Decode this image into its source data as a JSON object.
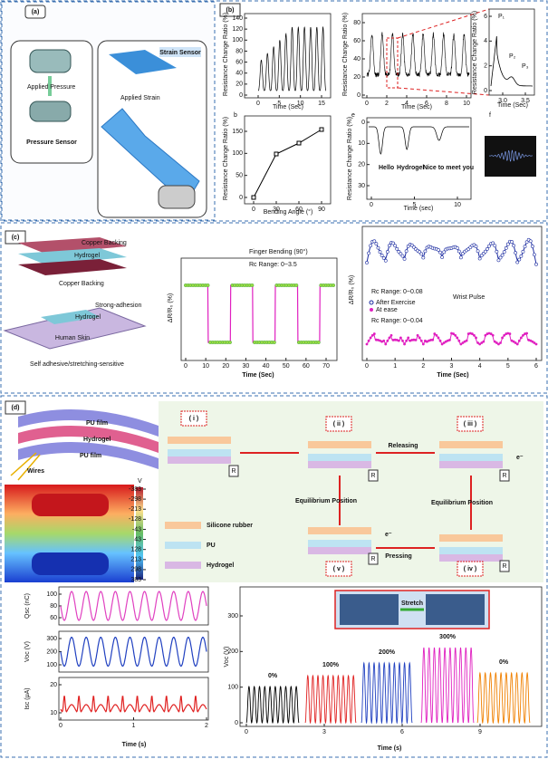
{
  "a": {
    "label": "(a)",
    "applied_pressure": "Applied Pressure",
    "pressure_sensor": "Pressure Sensor",
    "strain_sensor": "Strain Sensor",
    "applied_strain": "Applied Strain"
  },
  "b": {
    "label": "(b)",
    "ylabel": "Resistance Change Ratio (%)",
    "c1": {
      "yticks": [
        0,
        20,
        40,
        60,
        80,
        100,
        120,
        140
      ],
      "xticks": [
        0,
        5,
        10,
        15
      ],
      "xlabel": "Time (Sec)"
    },
    "c2": {
      "yticks": [
        0,
        20,
        40,
        60,
        80
      ],
      "xticks": [
        0,
        2,
        4,
        6,
        8,
        10
      ],
      "xlabel": "Time (Sec)"
    },
    "c3": {
      "yticks": [
        0,
        2,
        4,
        6
      ],
      "xticks": [
        "3.0",
        "3.5"
      ],
      "xlabel": "Time (Sec)",
      "peaks": [
        "P₁",
        "P₂",
        "P₃"
      ]
    },
    "c4": {
      "label": "b",
      "yticks": [
        0,
        50,
        100,
        150
      ],
      "xticks": [
        0,
        30,
        60,
        90
      ],
      "xlabel": "Bending Angle (°)"
    },
    "c5": {
      "label": "e",
      "yticks": [
        0,
        10,
        20,
        30
      ],
      "xticks": [
        0,
        5,
        10
      ],
      "xlabel": "Time (sec)",
      "words": [
        "Hello",
        "Hydrogel",
        "Nice to meet you"
      ]
    },
    "c6": {
      "label": "f"
    }
  },
  "c": {
    "label": "(c)",
    "copper_top": "Copper Backing",
    "hydrogel_top": "Hydrogel",
    "copper_bottom": "Copper Backing",
    "strong_adhesion": "Strong-adhesion",
    "hydrogel_skin": "Hydrogel",
    "human_skin": "Human Skin",
    "caption": "Self adhesive/stretching-sensitive",
    "c1": {
      "ylabel": "ΔR/R₀ (%)",
      "title": "Finger Bending (90°)",
      "range": "Rc Range: 0~3.5",
      "xticks": [
        0,
        10,
        20,
        30,
        40,
        50,
        60,
        70
      ],
      "xlabel": "Time (Sec)"
    },
    "c2": {
      "ylabel": "ΔR/R₀ (%)",
      "range_top": "Rc Range: 0~0.08",
      "range_bottom": "Rc Range: 0~0.04",
      "legend": [
        "After Exercise",
        "At ease"
      ],
      "title": "Wrist Pulse",
      "xticks": [
        0,
        1,
        2,
        3,
        4,
        5,
        6
      ],
      "xlabel": "Time (Sec)"
    }
  },
  "d": {
    "label": "(d)",
    "layers": [
      "PU film",
      "Hydrogel",
      "PU film"
    ],
    "wires": "Wires",
    "colorbar_unit": "V",
    "colorbar_ticks": [
      383,
      298,
      213,
      128,
      43,
      -43,
      -128,
      -213,
      -298,
      -383
    ],
    "steps": [
      "( i )",
      "( ii )",
      "( iii )",
      "( iv )",
      "( v )"
    ],
    "releasing": "Releasing",
    "pressing": "Pressing",
    "equilibrium": [
      "Equilibrium Position",
      "Equilibrium Position"
    ],
    "electron": [
      "e⁻",
      "e⁻"
    ],
    "resistor": [
      "R",
      "R",
      "R",
      "R",
      "R"
    ],
    "legend": [
      "Silicone rubber",
      "PU",
      "Hydrogel"
    ],
    "charts_left": {
      "ylabels": [
        "Qsc (nC)",
        "Voc (V)",
        "Isc (μA)"
      ],
      "yticks": [
        [
          60,
          80,
          100
        ],
        [
          100,
          200,
          300
        ],
        [
          10,
          20
        ]
      ],
      "xticks": [
        0,
        1,
        2
      ],
      "xlabel": "Time (s)"
    },
    "chart_right": {
      "ylabel": "Voc (V)",
      "yticks": [
        0,
        100,
        200,
        300
      ],
      "xticks": [
        0,
        3,
        6,
        9
      ],
      "xlabel": "Time (s)",
      "strains": [
        "0%",
        "100%",
        "200%",
        "300%",
        "0%"
      ],
      "stretch": "Stretch"
    }
  }
}
